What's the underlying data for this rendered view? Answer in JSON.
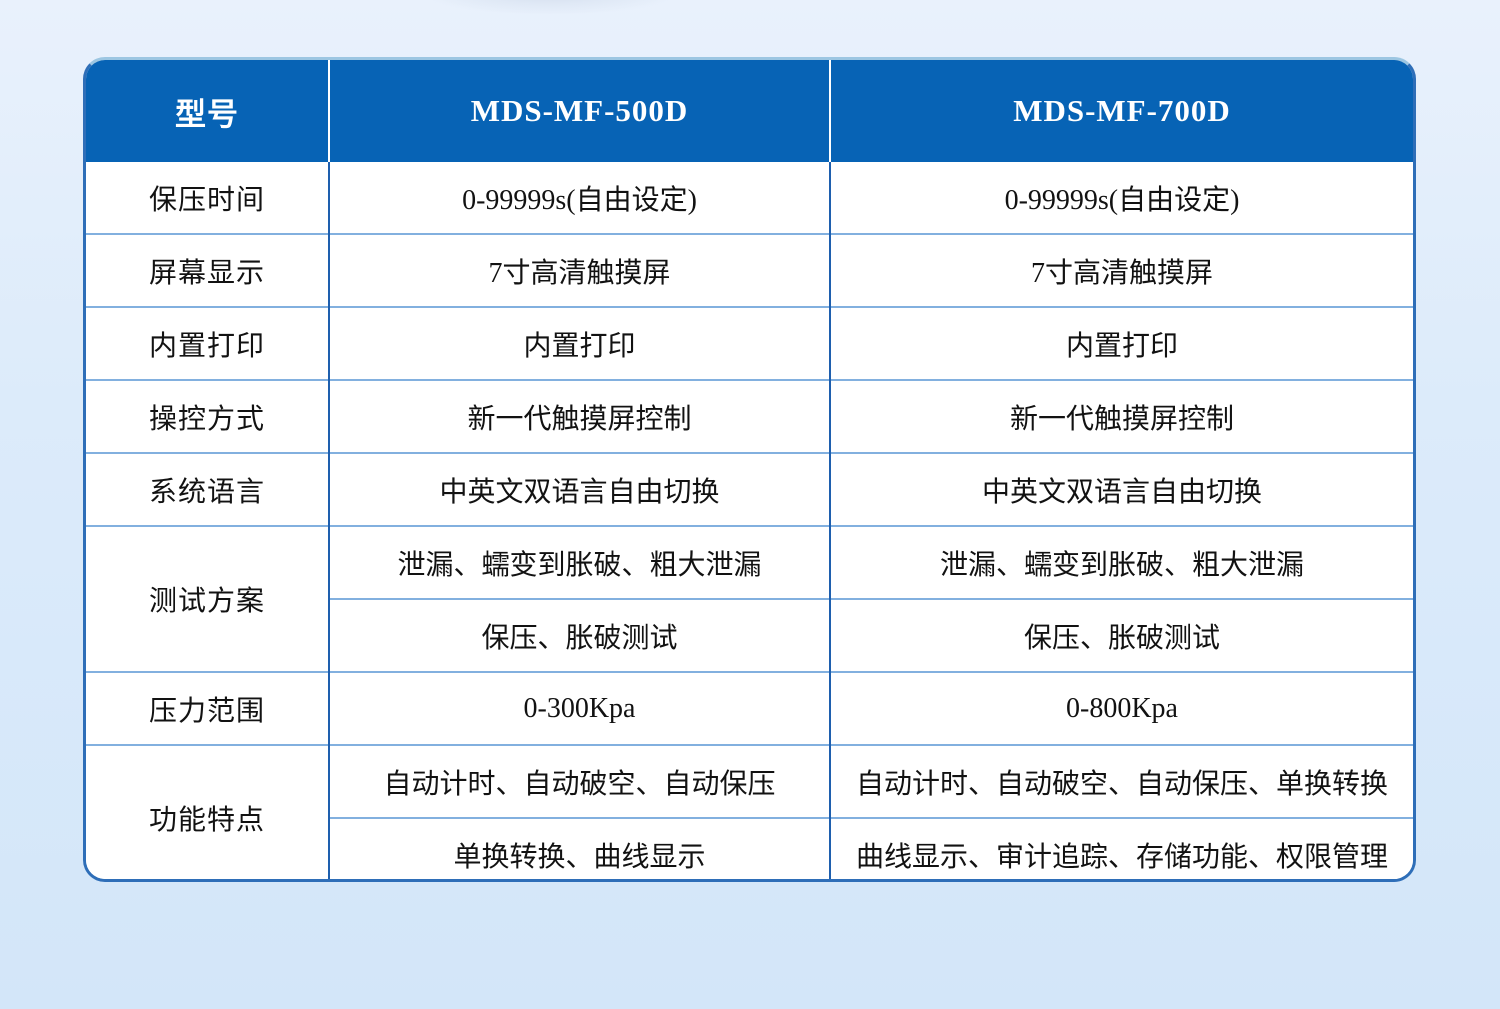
{
  "page": {
    "background_top": "#e9f1fc",
    "background_bottom": "#d3e6f9"
  },
  "colors": {
    "header_bg": "#0763b5",
    "header_text": "#ffffff",
    "outer_border": "#2e6eb8",
    "vertical_divider": "#1e5fae",
    "row_divider": "#82b0df",
    "cell_bg": "#ffffff",
    "body_text": "#121212"
  },
  "spec_table": {
    "columns": [
      "型号",
      "MDS-MF-500D",
      "MDS-MF-700D"
    ],
    "rows": [
      {
        "label": "保压时间",
        "rowspan": 1,
        "mf500": "0-99999s(自由设定)",
        "mf700": "0-99999s(自由设定)"
      },
      {
        "label": "屏幕显示",
        "rowspan": 1,
        "mf500": "7寸高清触摸屏",
        "mf700": "7寸高清触摸屏"
      },
      {
        "label": "内置打印",
        "rowspan": 1,
        "mf500": "内置打印",
        "mf700": "内置打印"
      },
      {
        "label": "操控方式",
        "rowspan": 1,
        "mf500": "新一代触摸屏控制",
        "mf700": "新一代触摸屏控制"
      },
      {
        "label": "系统语言",
        "rowspan": 1,
        "mf500": "中英文双语言自由切换",
        "mf700": "中英文双语言自由切换"
      },
      {
        "label": "测试方案",
        "rowspan": 2,
        "mf500": "泄漏、蠕变到胀破、粗大泄漏",
        "mf700": "泄漏、蠕变到胀破、粗大泄漏"
      },
      {
        "mf500": "保压、胀破测试",
        "mf700": "保压、胀破测试"
      },
      {
        "label": "压力范围",
        "rowspan": 1,
        "mf500": "0-300Kpa",
        "mf700": "0-800Kpa"
      },
      {
        "label": "功能特点",
        "rowspan": 2,
        "mf500": "自动计时、自动破空、自动保压",
        "mf700": "自动计时、自动破空、自动保压、单换转换"
      },
      {
        "mf500": "单换转换、曲线显示",
        "mf700": "曲线显示、审计追踪、存储功能、权限管理"
      }
    ]
  }
}
